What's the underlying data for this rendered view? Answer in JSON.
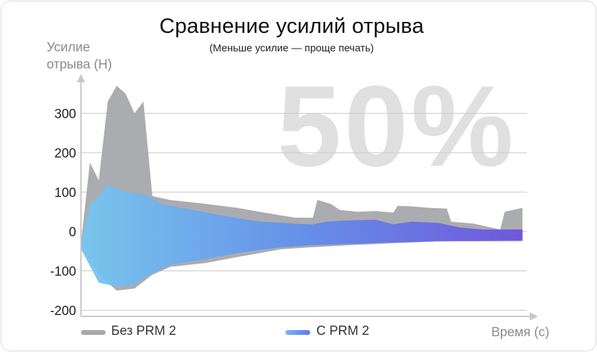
{
  "chart_data": {
    "type": "area",
    "title": "Сравнение усилий отрыва",
    "subtitle": "(Меньше усилие — проще печать)",
    "ylabel_line1": "Усилие",
    "ylabel_line2": "отрыва (Н)",
    "xlabel": "Время (с)",
    "watermark": "50%",
    "ylim": [
      -200,
      360
    ],
    "yticks": [
      "300",
      "200",
      "100",
      "0",
      "-100",
      "-200"
    ],
    "ytick_values": [
      300,
      200,
      100,
      0,
      -100,
      -200
    ],
    "grid": true,
    "legend_position": "bottom",
    "x_range": [
      0,
      100
    ],
    "series": [
      {
        "name": "Без PRM 2",
        "color": "#a6a8ab",
        "upper": [
          [
            0,
            -30
          ],
          [
            2,
            175
          ],
          [
            4,
            130
          ],
          [
            6,
            330
          ],
          [
            8,
            370
          ],
          [
            10,
            350
          ],
          [
            12,
            300
          ],
          [
            14,
            330
          ],
          [
            16,
            90
          ],
          [
            20,
            80
          ],
          [
            28,
            70
          ],
          [
            35,
            60
          ],
          [
            40,
            50
          ],
          [
            48,
            35
          ],
          [
            52,
            35
          ],
          [
            53,
            80
          ],
          [
            56,
            70
          ],
          [
            58,
            55
          ],
          [
            62,
            50
          ],
          [
            66,
            52
          ],
          [
            70,
            48
          ],
          [
            71,
            65
          ],
          [
            74,
            64
          ],
          [
            78,
            60
          ],
          [
            82,
            58
          ],
          [
            83,
            25
          ],
          [
            88,
            20
          ],
          [
            92,
            10
          ],
          [
            94,
            5
          ],
          [
            95,
            50
          ],
          [
            99,
            60
          ]
        ],
        "lower": [
          [
            0,
            -40
          ],
          [
            4,
            -110
          ],
          [
            8,
            -150
          ],
          [
            12,
            -145
          ],
          [
            16,
            -110
          ],
          [
            20,
            -90
          ],
          [
            28,
            -80
          ],
          [
            35,
            -65
          ],
          [
            45,
            -45
          ],
          [
            52,
            -40
          ],
          [
            60,
            -35
          ],
          [
            70,
            -30
          ],
          [
            80,
            -25
          ],
          [
            90,
            -25
          ],
          [
            99,
            -25
          ]
        ]
      },
      {
        "name": "С PRM 2",
        "color": "#6f8ef0",
        "upper": [
          [
            0,
            -30
          ],
          [
            2,
            70
          ],
          [
            4,
            90
          ],
          [
            6,
            120
          ],
          [
            8,
            110
          ],
          [
            10,
            100
          ],
          [
            14,
            95
          ],
          [
            18,
            70
          ],
          [
            25,
            55
          ],
          [
            32,
            40
          ],
          [
            40,
            25
          ],
          [
            48,
            20
          ],
          [
            52,
            18
          ],
          [
            55,
            25
          ],
          [
            60,
            28
          ],
          [
            66,
            30
          ],
          [
            70,
            18
          ],
          [
            74,
            25
          ],
          [
            80,
            22
          ],
          [
            85,
            10
          ],
          [
            90,
            5
          ],
          [
            95,
            5
          ],
          [
            99,
            5
          ]
        ],
        "lower": [
          [
            0,
            -45
          ],
          [
            4,
            -130
          ],
          [
            8,
            -140
          ],
          [
            12,
            -135
          ],
          [
            16,
            -105
          ],
          [
            20,
            -85
          ],
          [
            28,
            -70
          ],
          [
            35,
            -55
          ],
          [
            45,
            -40
          ],
          [
            52,
            -35
          ],
          [
            60,
            -32
          ],
          [
            70,
            -28
          ],
          [
            80,
            -25
          ],
          [
            90,
            -24
          ],
          [
            99,
            -23
          ]
        ]
      }
    ]
  }
}
